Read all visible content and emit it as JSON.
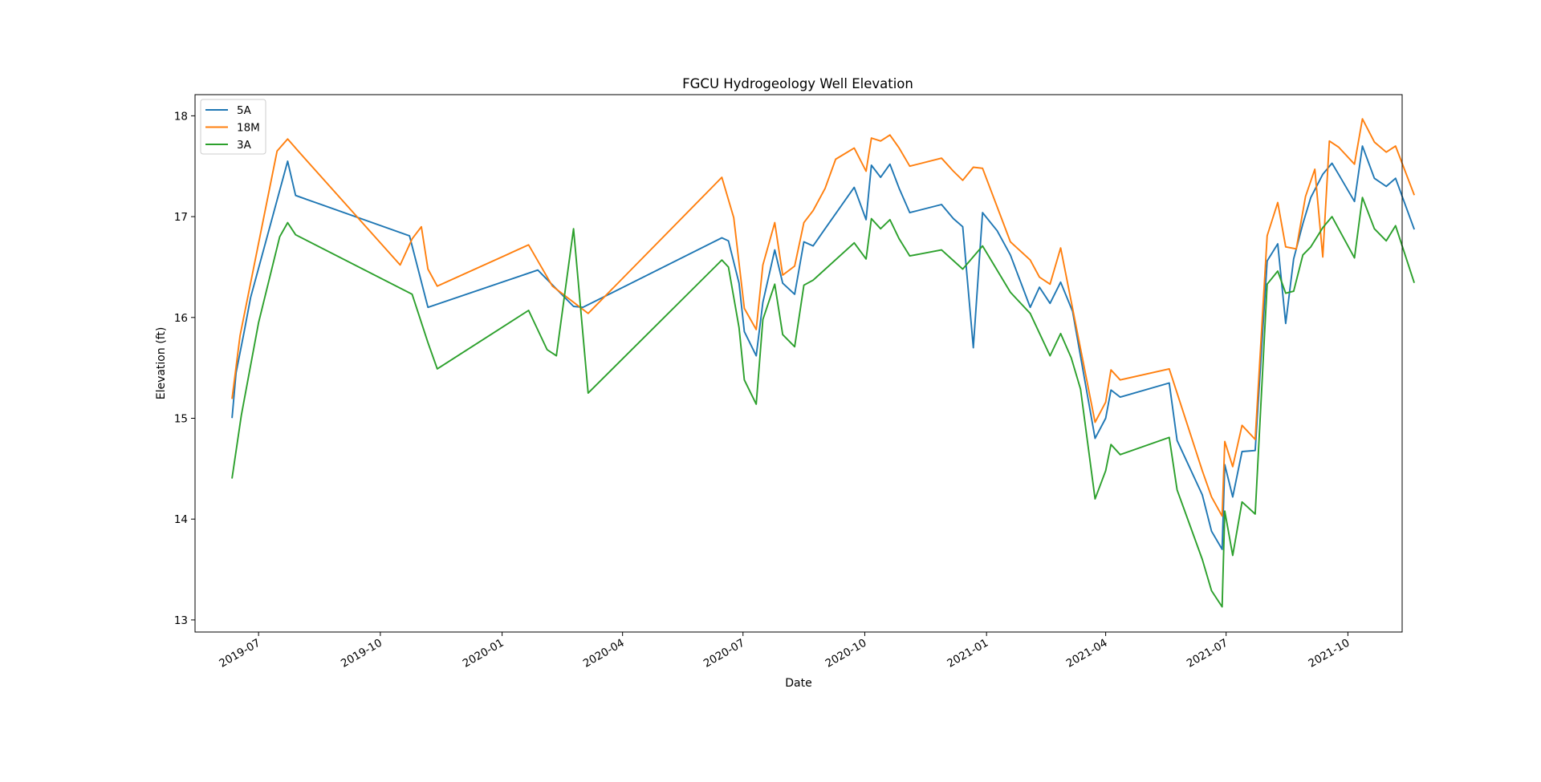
{
  "chart_data": {
    "type": "line",
    "title": "FGCU Hydrogeology Well Elevation",
    "xlabel": "Date",
    "ylabel": "Elevation (ft)",
    "xlim": [
      "2019-05-14",
      "2021-11-11"
    ],
    "ylim": [
      12.88,
      18.21
    ],
    "grid": false,
    "legend_position": "upper-left",
    "x_ticks": [
      "2019-07",
      "2019-10",
      "2020-01",
      "2020-04",
      "2020-07",
      "2020-10",
      "2021-01",
      "2021-04",
      "2021-07",
      "2021-10"
    ],
    "y_ticks": [
      "13",
      "14",
      "15",
      "16",
      "17",
      "18"
    ],
    "series": [
      {
        "name": "5A",
        "color": "#1f77b4",
        "points": [
          [
            "2019-06-11",
            15.01
          ],
          [
            "2019-06-14",
            15.45
          ],
          [
            "2019-06-20",
            15.85
          ],
          [
            "2019-06-25",
            16.2
          ],
          [
            "2019-07-23",
            17.55
          ],
          [
            "2019-07-29",
            17.21
          ],
          [
            "2019-10-23",
            16.81
          ],
          [
            "2019-11-06",
            16.1
          ],
          [
            "2020-01-28",
            16.47
          ],
          [
            "2020-02-24",
            16.11
          ],
          [
            "2020-03-02",
            16.1
          ],
          [
            "2020-06-15",
            16.79
          ],
          [
            "2020-06-20",
            16.76
          ],
          [
            "2020-06-28",
            16.34
          ],
          [
            "2020-07-02",
            15.86
          ],
          [
            "2020-07-11",
            15.62
          ],
          [
            "2020-07-16",
            16.15
          ],
          [
            "2020-07-25",
            16.67
          ],
          [
            "2020-07-31",
            16.34
          ],
          [
            "2020-08-09",
            16.23
          ],
          [
            "2020-08-16",
            16.75
          ],
          [
            "2020-08-23",
            16.71
          ],
          [
            "2020-09-01",
            16.88
          ],
          [
            "2020-09-23",
            17.29
          ],
          [
            "2020-10-02",
            16.97
          ],
          [
            "2020-10-06",
            17.51
          ],
          [
            "2020-10-13",
            17.39
          ],
          [
            "2020-10-20",
            17.52
          ],
          [
            "2020-10-27",
            17.28
          ],
          [
            "2020-11-04",
            17.04
          ],
          [
            "2020-11-28",
            17.12
          ],
          [
            "2020-12-07",
            16.98
          ],
          [
            "2020-12-14",
            16.9
          ],
          [
            "2020-12-22",
            15.7
          ],
          [
            "2020-12-29",
            17.04
          ],
          [
            "2021-01-09",
            16.86
          ],
          [
            "2021-01-19",
            16.62
          ],
          [
            "2021-02-03",
            16.1
          ],
          [
            "2021-02-10",
            16.3
          ],
          [
            "2021-02-18",
            16.14
          ],
          [
            "2021-02-26",
            16.35
          ],
          [
            "2021-03-07",
            16.06
          ],
          [
            "2021-03-24",
            14.8
          ],
          [
            "2021-04-01",
            15.0
          ],
          [
            "2021-04-05",
            15.28
          ],
          [
            "2021-04-12",
            15.21
          ],
          [
            "2021-05-19",
            15.35
          ],
          [
            "2021-05-25",
            14.78
          ],
          [
            "2021-06-13",
            14.24
          ],
          [
            "2021-06-20",
            13.88
          ],
          [
            "2021-06-28",
            13.7
          ],
          [
            "2021-06-30",
            14.54
          ],
          [
            "2021-07-06",
            14.22
          ],
          [
            "2021-07-13",
            14.67
          ],
          [
            "2021-07-23",
            14.68
          ],
          [
            "2021-08-01",
            16.56
          ],
          [
            "2021-08-09",
            16.73
          ],
          [
            "2021-08-15",
            15.94
          ],
          [
            "2021-08-21",
            16.58
          ],
          [
            "2021-08-28",
            16.93
          ],
          [
            "2021-09-03",
            17.19
          ],
          [
            "2021-09-12",
            17.42
          ],
          [
            "2021-09-19",
            17.53
          ],
          [
            "2021-09-24",
            17.42
          ],
          [
            "2021-10-06",
            17.15
          ],
          [
            "2021-10-12",
            17.7
          ],
          [
            "2021-10-21",
            17.38
          ],
          [
            "2021-10-30",
            17.3
          ],
          [
            "2021-11-06",
            17.38
          ],
          [
            "2021-11-20",
            16.88
          ]
        ]
      },
      {
        "name": "18M",
        "color": "#ff7f0e",
        "points": [
          [
            "2019-06-11",
            15.2
          ],
          [
            "2019-06-17",
            15.82
          ],
          [
            "2019-07-15",
            17.65
          ],
          [
            "2019-07-23",
            17.77
          ],
          [
            "2019-07-31",
            17.65
          ],
          [
            "2019-10-16",
            16.52
          ],
          [
            "2019-10-25",
            16.78
          ],
          [
            "2019-11-01",
            16.9
          ],
          [
            "2019-11-06",
            16.48
          ],
          [
            "2019-11-13",
            16.31
          ],
          [
            "2020-01-21",
            16.72
          ],
          [
            "2020-02-08",
            16.31
          ],
          [
            "2020-03-06",
            16.04
          ],
          [
            "2020-06-15",
            17.39
          ],
          [
            "2020-06-24",
            16.99
          ],
          [
            "2020-07-02",
            16.09
          ],
          [
            "2020-07-11",
            15.88
          ],
          [
            "2020-07-16",
            16.52
          ],
          [
            "2020-07-25",
            16.94
          ],
          [
            "2020-07-31",
            16.42
          ],
          [
            "2020-08-09",
            16.51
          ],
          [
            "2020-08-16",
            16.94
          ],
          [
            "2020-08-23",
            17.06
          ],
          [
            "2020-09-01",
            17.28
          ],
          [
            "2020-09-09",
            17.57
          ],
          [
            "2020-09-23",
            17.68
          ],
          [
            "2020-10-02",
            17.45
          ],
          [
            "2020-10-06",
            17.78
          ],
          [
            "2020-10-13",
            17.75
          ],
          [
            "2020-10-20",
            17.81
          ],
          [
            "2020-10-27",
            17.68
          ],
          [
            "2020-11-04",
            17.5
          ],
          [
            "2020-11-28",
            17.58
          ],
          [
            "2020-12-07",
            17.45
          ],
          [
            "2020-12-14",
            17.36
          ],
          [
            "2020-12-22",
            17.49
          ],
          [
            "2020-12-29",
            17.48
          ],
          [
            "2021-01-19",
            16.75
          ],
          [
            "2021-02-03",
            16.57
          ],
          [
            "2021-02-10",
            16.4
          ],
          [
            "2021-02-18",
            16.33
          ],
          [
            "2021-02-26",
            16.69
          ],
          [
            "2021-03-24",
            14.96
          ],
          [
            "2021-04-01",
            15.16
          ],
          [
            "2021-04-05",
            15.48
          ],
          [
            "2021-04-12",
            15.38
          ],
          [
            "2021-05-19",
            15.49
          ],
          [
            "2021-06-13",
            14.48
          ],
          [
            "2021-06-20",
            14.22
          ],
          [
            "2021-06-28",
            14.03
          ],
          [
            "2021-06-30",
            14.77
          ],
          [
            "2021-07-06",
            14.52
          ],
          [
            "2021-07-13",
            14.93
          ],
          [
            "2021-07-23",
            14.79
          ],
          [
            "2021-08-01",
            16.81
          ],
          [
            "2021-08-09",
            17.14
          ],
          [
            "2021-08-15",
            16.7
          ],
          [
            "2021-08-23",
            16.68
          ],
          [
            "2021-08-30",
            17.2
          ],
          [
            "2021-09-06",
            17.47
          ],
          [
            "2021-09-12",
            16.6
          ],
          [
            "2021-09-17",
            17.75
          ],
          [
            "2021-09-24",
            17.69
          ],
          [
            "2021-10-06",
            17.52
          ],
          [
            "2021-10-12",
            17.97
          ],
          [
            "2021-10-21",
            17.74
          ],
          [
            "2021-10-30",
            17.64
          ],
          [
            "2021-11-06",
            17.7
          ],
          [
            "2021-11-20",
            17.22
          ]
        ]
      },
      {
        "name": "3A",
        "color": "#2ca02c",
        "points": [
          [
            "2019-06-11",
            14.41
          ],
          [
            "2019-06-18",
            15.03
          ],
          [
            "2019-07-01",
            15.95
          ],
          [
            "2019-07-17",
            16.8
          ],
          [
            "2019-07-23",
            16.94
          ],
          [
            "2019-07-29",
            16.82
          ],
          [
            "2019-10-25",
            16.23
          ],
          [
            "2019-11-06",
            15.75
          ],
          [
            "2019-11-13",
            15.49
          ],
          [
            "2020-01-21",
            16.07
          ],
          [
            "2020-02-04",
            15.68
          ],
          [
            "2020-02-11",
            15.62
          ],
          [
            "2020-02-24",
            16.88
          ],
          [
            "2020-03-06",
            15.25
          ],
          [
            "2020-06-15",
            16.57
          ],
          [
            "2020-06-20",
            16.5
          ],
          [
            "2020-06-28",
            15.9
          ],
          [
            "2020-07-02",
            15.38
          ],
          [
            "2020-07-11",
            15.14
          ],
          [
            "2020-07-16",
            15.98
          ],
          [
            "2020-07-25",
            16.33
          ],
          [
            "2020-07-31",
            15.83
          ],
          [
            "2020-08-09",
            15.71
          ],
          [
            "2020-08-16",
            16.32
          ],
          [
            "2020-08-23",
            16.37
          ],
          [
            "2020-09-23",
            16.74
          ],
          [
            "2020-10-02",
            16.58
          ],
          [
            "2020-10-06",
            16.98
          ],
          [
            "2020-10-13",
            16.88
          ],
          [
            "2020-10-20",
            16.97
          ],
          [
            "2020-10-27",
            16.78
          ],
          [
            "2020-11-04",
            16.61
          ],
          [
            "2020-11-28",
            16.67
          ],
          [
            "2020-12-14",
            16.48
          ],
          [
            "2020-12-29",
            16.71
          ],
          [
            "2021-01-19",
            16.25
          ],
          [
            "2021-02-03",
            16.04
          ],
          [
            "2021-02-18",
            15.62
          ],
          [
            "2021-02-26",
            15.84
          ],
          [
            "2021-03-06",
            15.6
          ],
          [
            "2021-03-13",
            15.29
          ],
          [
            "2021-03-24",
            14.2
          ],
          [
            "2021-04-01",
            14.48
          ],
          [
            "2021-04-05",
            14.74
          ],
          [
            "2021-04-12",
            14.64
          ],
          [
            "2021-05-19",
            14.81
          ],
          [
            "2021-05-25",
            14.29
          ],
          [
            "2021-06-13",
            13.6
          ],
          [
            "2021-06-20",
            13.29
          ],
          [
            "2021-06-28",
            13.13
          ],
          [
            "2021-06-30",
            14.08
          ],
          [
            "2021-07-06",
            13.64
          ],
          [
            "2021-07-13",
            14.17
          ],
          [
            "2021-07-23",
            14.05
          ],
          [
            "2021-08-01",
            16.33
          ],
          [
            "2021-08-09",
            16.46
          ],
          [
            "2021-08-15",
            16.24
          ],
          [
            "2021-08-21",
            16.26
          ],
          [
            "2021-08-28",
            16.62
          ],
          [
            "2021-09-03",
            16.7
          ],
          [
            "2021-09-12",
            16.89
          ],
          [
            "2021-09-19",
            17.0
          ],
          [
            "2021-09-24",
            16.88
          ],
          [
            "2021-10-06",
            16.59
          ],
          [
            "2021-10-12",
            17.19
          ],
          [
            "2021-10-21",
            16.88
          ],
          [
            "2021-10-30",
            16.76
          ],
          [
            "2021-11-06",
            16.91
          ],
          [
            "2021-11-20",
            16.35
          ]
        ]
      }
    ]
  }
}
